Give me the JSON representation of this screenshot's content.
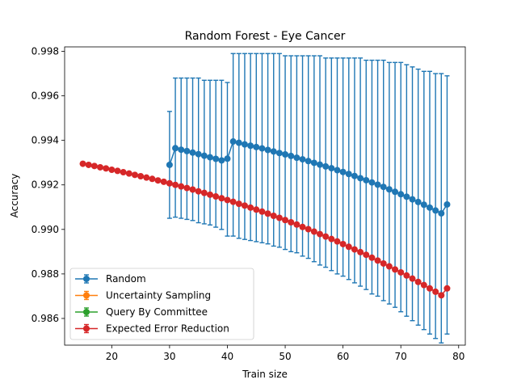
{
  "chart_data": {
    "type": "line",
    "title": "Random Forest - Eye Cancer",
    "xlabel": "Train size",
    "ylabel": "Accuracy",
    "xlim": [
      11.85,
      81.15
    ],
    "ylim": [
      0.9848,
      0.9982
    ],
    "xticks": [
      20,
      30,
      40,
      50,
      60,
      70,
      80
    ],
    "yticks": [
      0.986,
      0.988,
      0.99,
      0.992,
      0.994,
      0.996,
      0.998
    ],
    "ytick_labels": [
      "0.986",
      "0.988",
      "0.990",
      "0.992",
      "0.994",
      "0.996",
      "0.998"
    ],
    "legend_position": "lower-left",
    "grid": false,
    "series": [
      {
        "name": "Random",
        "color": "#1f77b4",
        "marker": "circle",
        "x": [
          30,
          31,
          32,
          33,
          34,
          35,
          36,
          37,
          38,
          39,
          40,
          41,
          42,
          43,
          44,
          45,
          46,
          47,
          48,
          49,
          50,
          51,
          52,
          53,
          54,
          55,
          56,
          57,
          58,
          59,
          60,
          61,
          62,
          63,
          64,
          65,
          66,
          67,
          68,
          69,
          70,
          71,
          72,
          73,
          74,
          75,
          76,
          77,
          78
        ],
        "y": [
          0.9929,
          0.99365,
          0.99358,
          0.99352,
          0.99345,
          0.99338,
          0.99331,
          0.99324,
          0.99317,
          0.9931,
          0.99318,
          0.99395,
          0.99389,
          0.99382,
          0.99376,
          0.9937,
          0.99364,
          0.99357,
          0.9935,
          0.99343,
          0.99337,
          0.9933,
          0.99322,
          0.99315,
          0.99307,
          0.99299,
          0.99291,
          0.99283,
          0.99275,
          0.99266,
          0.99258,
          0.99249,
          0.9924,
          0.9923,
          0.99221,
          0.99211,
          0.99201,
          0.99191,
          0.9918,
          0.99169,
          0.99158,
          0.99147,
          0.99135,
          0.99123,
          0.99111,
          0.99098,
          0.99085,
          0.99072,
          0.99112
        ],
        "err_upper": [
          0.9953,
          0.9968,
          0.9968,
          0.9968,
          0.9968,
          0.9968,
          0.9967,
          0.9967,
          0.9967,
          0.9967,
          0.9966,
          0.9979,
          0.9979,
          0.9979,
          0.9979,
          0.9979,
          0.9979,
          0.9979,
          0.9979,
          0.9979,
          0.9978,
          0.9978,
          0.9978,
          0.9978,
          0.9978,
          0.9978,
          0.9978,
          0.9977,
          0.9977,
          0.9977,
          0.9977,
          0.9977,
          0.9977,
          0.9977,
          0.9976,
          0.9976,
          0.9976,
          0.9976,
          0.9975,
          0.9975,
          0.9975,
          0.9974,
          0.9973,
          0.9972,
          0.9971,
          0.9971,
          0.997,
          0.997,
          0.9969
        ],
        "err_lower": [
          0.9905,
          0.99055,
          0.9905,
          0.99045,
          0.9904,
          0.9903,
          0.99025,
          0.9902,
          0.9901,
          0.99,
          0.9897,
          0.9897,
          0.9896,
          0.98955,
          0.9895,
          0.98945,
          0.9894,
          0.98935,
          0.98925,
          0.9892,
          0.9891,
          0.989,
          0.98895,
          0.9888,
          0.9887,
          0.98855,
          0.9884,
          0.9883,
          0.98815,
          0.988,
          0.9879,
          0.98775,
          0.9876,
          0.98745,
          0.9873,
          0.9871,
          0.987,
          0.9868,
          0.98665,
          0.9865,
          0.9863,
          0.9861,
          0.9859,
          0.9857,
          0.9855,
          0.9853,
          0.9851,
          0.9849,
          0.9853
        ]
      },
      {
        "name": "Uncertainty Sampling",
        "color": "#ff7f0e",
        "marker": "circle",
        "x": [],
        "y": []
      },
      {
        "name": "Query By Committee",
        "color": "#2ca02c",
        "marker": "circle",
        "x": [],
        "y": []
      },
      {
        "name": "Expected Error Reduction",
        "color": "#d62728",
        "marker": "circle",
        "x": [
          15,
          16,
          17,
          18,
          19,
          20,
          21,
          22,
          23,
          24,
          25,
          26,
          27,
          28,
          29,
          30,
          31,
          32,
          33,
          34,
          35,
          36,
          37,
          38,
          39,
          40,
          41,
          42,
          43,
          44,
          45,
          46,
          47,
          48,
          49,
          50,
          51,
          52,
          53,
          54,
          55,
          56,
          57,
          58,
          59,
          60,
          61,
          62,
          63,
          64,
          65,
          66,
          67,
          68,
          69,
          70,
          71,
          72,
          73,
          74,
          75,
          76,
          77,
          78
        ],
        "y": [
          0.99295,
          0.9929,
          0.99285,
          0.99279,
          0.99274,
          0.99268,
          0.99263,
          0.99257,
          0.99251,
          0.99245,
          0.99239,
          0.99233,
          0.99227,
          0.9922,
          0.99214,
          0.99207,
          0.992,
          0.99193,
          0.99186,
          0.99179,
          0.99171,
          0.99164,
          0.99156,
          0.99148,
          0.9914,
          0.99132,
          0.99124,
          0.99115,
          0.99107,
          0.99098,
          0.99089,
          0.9908,
          0.99071,
          0.99061,
          0.99052,
          0.99042,
          0.99032,
          0.99022,
          0.99011,
          0.99001,
          0.9899,
          0.98979,
          0.98968,
          0.98957,
          0.98946,
          0.98934,
          0.98922,
          0.9891,
          0.98898,
          0.98886,
          0.98873,
          0.9886,
          0.98847,
          0.98834,
          0.9882,
          0.98807,
          0.98793,
          0.98779,
          0.98764,
          0.9875,
          0.98735,
          0.9872,
          0.98704,
          0.98735
        ]
      }
    ]
  }
}
